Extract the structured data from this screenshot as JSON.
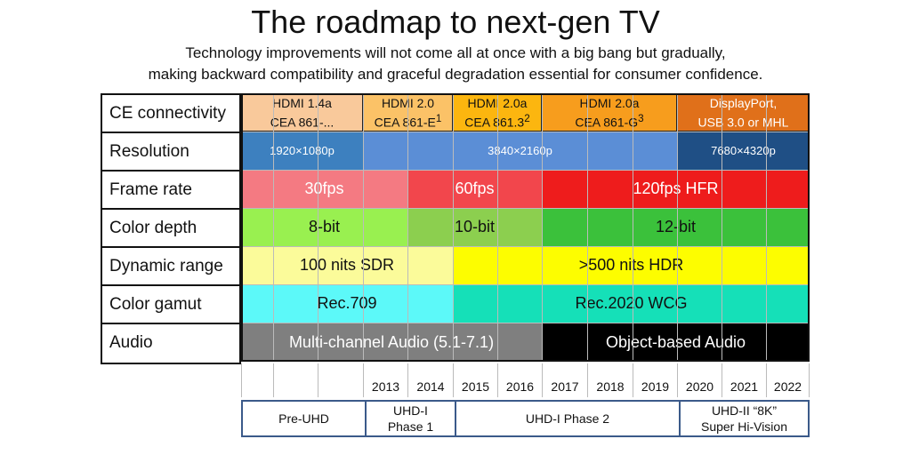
{
  "title": "The roadmap to next-gen TV",
  "subtitle_line1": "Technology improvements will not come all at once with a big bang but gradually,",
  "subtitle_line2": "making backward  compatibility and graceful degradation essential for consumer confidence.",
  "row_labels": [
    "CE connectivity",
    "Resolution",
    "Frame rate",
    "Color depth",
    "Dynamic range",
    "Color gamut",
    "Audio"
  ],
  "years": [
    "2013",
    "2014",
    "2015",
    "2016",
    "2017",
    "2018",
    "2019",
    "2020",
    "2021",
    "2022"
  ],
  "ce_connectivity": [
    {
      "line1": "HDMI 1.4a",
      "line2": "CEA 861-...",
      "sup": "",
      "color": "#f9c99b",
      "text_color": "#111111"
    },
    {
      "line1": "HDMI 2.0",
      "line2": "CEA 861-E",
      "sup": "1",
      "color": "#fbc267",
      "text_color": "#111111"
    },
    {
      "line1": "HDMI 2.0a",
      "line2": "CEA 861.3",
      "sup": "2",
      "color": "#fcb60f",
      "text_color": "#111111"
    },
    {
      "line1": "HDMI 2.0a",
      "line2": "CEA 861-G",
      "sup": "3",
      "color": "#f79d1d",
      "text_color": "#111111"
    },
    {
      "line1": "DisplayPort,",
      "line2": "USB 3.0 or MHL",
      "sup": "",
      "color": "#e0701a",
      "text_color": "#ffffff"
    }
  ],
  "resolution": [
    {
      "text": "1920×1080p",
      "color": "#3d80bf",
      "text_color": "#ffffff"
    },
    {
      "text": "3840×2160p",
      "color": "#5b8ed6",
      "text_color": "#ffffff"
    },
    {
      "text": "7680×4320p",
      "color": "#1f4f85",
      "text_color": "#ffffff"
    }
  ],
  "frame_rate": [
    {
      "text": "30fps",
      "color": "#f47a82",
      "text_color": "#ffffff"
    },
    {
      "text": "60fps",
      "color": "#f2464c",
      "text_color": "#ffffff"
    },
    {
      "text": "120fps HFR",
      "color": "#ee1c1c",
      "text_color": "#ffffff"
    }
  ],
  "color_depth": [
    {
      "text": "8-bit",
      "color": "#99f050",
      "text_color": "#111111"
    },
    {
      "text": "10-bit",
      "color": "#8ccf4f",
      "text_color": "#111111"
    },
    {
      "text": "12-bit",
      "color": "#3bc13b",
      "text_color": "#111111"
    }
  ],
  "dynamic_range": [
    {
      "text": "100 nits SDR",
      "color": "#fbfb9a",
      "text_color": "#111111"
    },
    {
      "text": ">500 nits HDR",
      "color": "#fdfd00",
      "text_color": "#111111"
    }
  ],
  "color_gamut": [
    {
      "text": "Rec.709",
      "color": "#5cf9f9",
      "text_color": "#111111"
    },
    {
      "text": "Rec.2020 WCG",
      "color": "#15e0b8",
      "text_color": "#111111"
    }
  ],
  "audio": [
    {
      "text": "Multi-channel Audio (5.1-7.1)",
      "color": "#7f7f7f",
      "text_color": "#ffffff"
    },
    {
      "text": "Object-based Audio",
      "color": "#000000",
      "text_color": "#ffffff"
    }
  ],
  "phases": [
    {
      "line1": "Pre-UHD",
      "line2": ""
    },
    {
      "line1": "UHD-I",
      "line2": "Phase 1"
    },
    {
      "line1": "UHD-I Phase 2",
      "line2": ""
    },
    {
      "line1": "UHD-II “8K”",
      "line2": "Super Hi-Vision"
    }
  ]
}
